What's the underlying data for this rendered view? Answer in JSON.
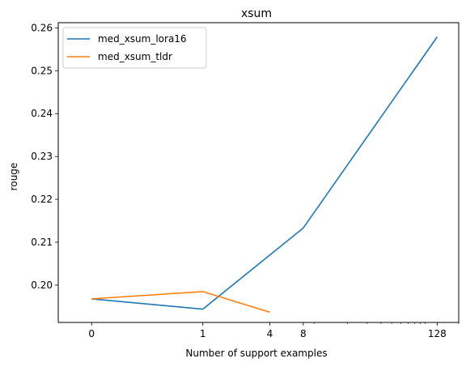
{
  "chart_data": {
    "type": "line",
    "title": "xsum",
    "xlabel": "Number of support examples",
    "ylabel": "rouge",
    "x_ticks": [
      {
        "value": 0,
        "label": "0"
      },
      {
        "value": 1,
        "label": "1"
      },
      {
        "value": 4,
        "label": "4"
      },
      {
        "value": 8,
        "label": "8"
      },
      {
        "value": 128,
        "label": "128"
      }
    ],
    "y_ticks": [
      {
        "value": 0.2,
        "label": "0.20"
      },
      {
        "value": 0.21,
        "label": "0.21"
      },
      {
        "value": 0.22,
        "label": "0.22"
      },
      {
        "value": 0.23,
        "label": "0.23"
      },
      {
        "value": 0.24,
        "label": "0.24"
      },
      {
        "value": 0.25,
        "label": "0.25"
      },
      {
        "value": 0.26,
        "label": "0.26"
      }
    ],
    "x_scale": "symlog",
    "xlim": [
      -0.3,
      200
    ],
    "ylim": [
      0.1913,
      0.2612
    ],
    "grid": false,
    "legend_position": "upper-left",
    "series": [
      {
        "name": "med_xsum_lora16",
        "color": "#1f77b4",
        "x": [
          0,
          1,
          8,
          128
        ],
        "y": [
          0.1968,
          0.1944,
          0.2133,
          0.2579
        ]
      },
      {
        "name": "med_xsum_tldr",
        "color": "#ff7f0e",
        "x": [
          0,
          1,
          4
        ],
        "y": [
          0.1968,
          0.1985,
          0.1937
        ]
      }
    ]
  }
}
